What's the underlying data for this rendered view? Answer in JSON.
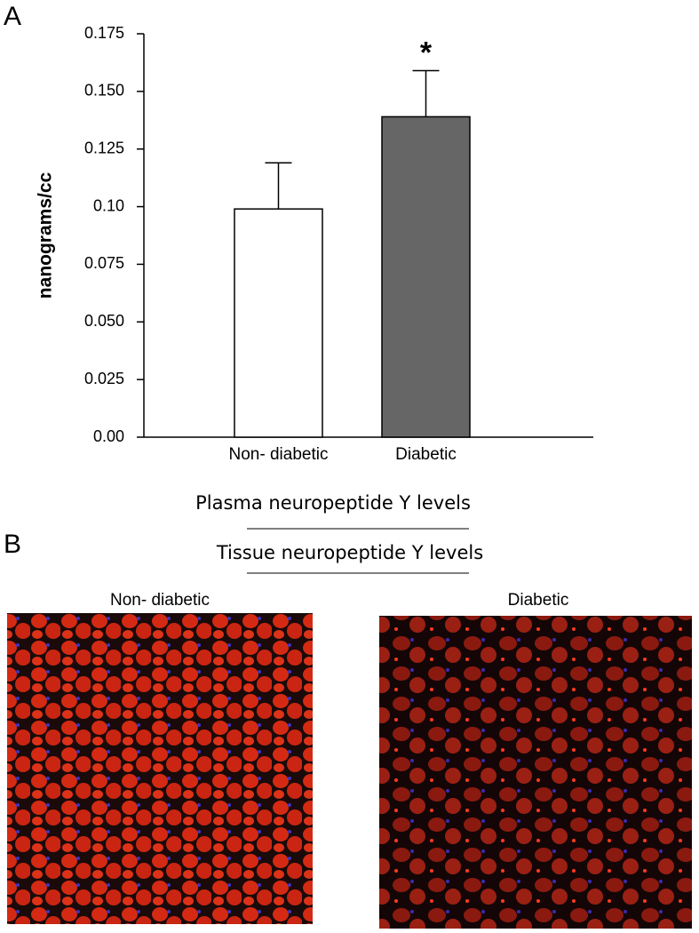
{
  "chart_data": {
    "type": "bar",
    "ylabel": "nanograms/cc",
    "categories": [
      "Non- diabetic",
      "Diabetic"
    ],
    "values": [
      0.099,
      0.139
    ],
    "errors": [
      0.02,
      0.02
    ],
    "colors": [
      "#ffffff",
      "#666666"
    ],
    "ylim": [
      0,
      0.175
    ],
    "yticks": [
      {
        "value": 0,
        "label": "0.00"
      },
      0.025,
      {
        "value": 0.05,
        "label": "0.050"
      },
      0.075,
      {
        "value": 0.1,
        "label": "0.10"
      },
      0.125,
      {
        "value": 0.15,
        "label": "0.150"
      },
      0.175
    ],
    "annotations": [
      {
        "text": "*",
        "x": "Diabetic"
      }
    ]
  },
  "panel_a_label": "A",
  "panel_b": {
    "label": "B",
    "caption_top": "Plasma neuropeptide Y levels",
    "caption_bottom": "Tissue neuropeptide Y levels",
    "images": [
      {
        "title": "Non- diabetic"
      },
      {
        "title": "Diabetic"
      }
    ]
  }
}
